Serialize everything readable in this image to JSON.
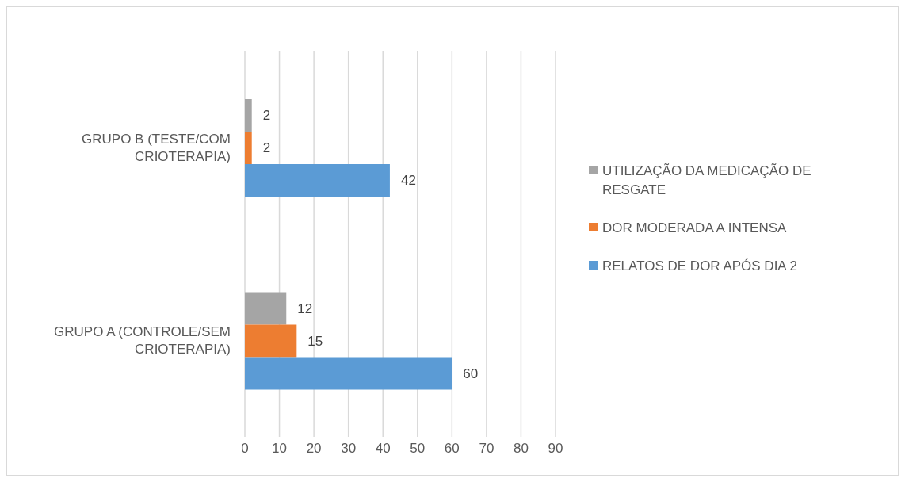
{
  "chart_data": {
    "type": "bar",
    "orientation": "horizontal",
    "categories": [
      "GRUPO B (TESTE/COM CRIOTERAPIA)",
      "GRUPO A (CONTROLE/SEM CRIOTERAPIA)"
    ],
    "series": [
      {
        "name": "UTILIZAÇÃO DA MEDICAÇÃO DE RESGATE",
        "color": "#a5a5a5",
        "values": [
          2,
          12
        ]
      },
      {
        "name": "DOR MODERADA A INTENSA",
        "color": "#ed7d31",
        "values": [
          2,
          15
        ]
      },
      {
        "name": "RELATOS DE DOR APÓS DIA 2",
        "color": "#5b9bd5",
        "values": [
          42,
          60
        ]
      }
    ],
    "xlim": [
      0,
      90
    ],
    "xticks": [
      0,
      10,
      20,
      30,
      40,
      50,
      60,
      70,
      80,
      90
    ],
    "grid": "x",
    "legend": "right",
    "data_labels": true
  }
}
